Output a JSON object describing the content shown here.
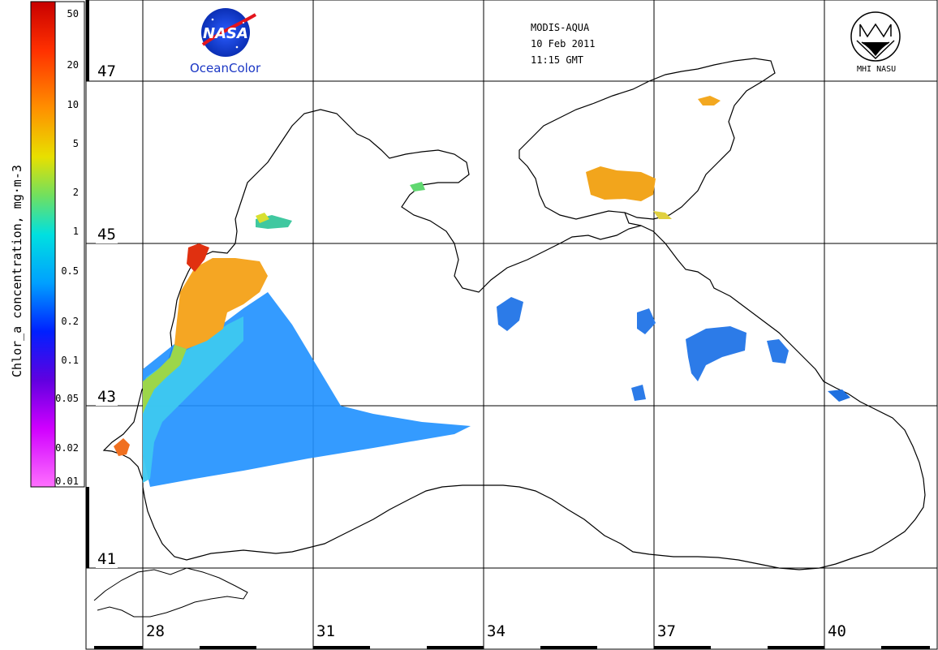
{
  "header": {
    "sensor": "MODIS-AQUA",
    "date": "10 Feb 2011",
    "time": "11:15 GMT"
  },
  "logos": {
    "nasa_text": "NASA",
    "ocean_color": "OceanColor",
    "mhi": "MHI NASU"
  },
  "colorbar": {
    "title": "Chlor_a concentration, mg·m-3",
    "ticks": [
      "50",
      "20",
      "10",
      "5",
      "2",
      "1",
      "0.5",
      "0.2",
      "0.1",
      "0.05",
      "0.02",
      "0.01"
    ],
    "colors": [
      "#c80000",
      "#ff6000",
      "#ffb000",
      "#e8e000",
      "#60e060",
      "#00e8e8",
      "#0080ff",
      "#0000ff",
      "#6000e0",
      "#c000ff",
      "#ff00ff",
      "#ff80ff"
    ]
  },
  "grid": {
    "lat_labels": [
      "47",
      "45",
      "43",
      "41"
    ],
    "lon_labels": [
      "28",
      "31",
      "34",
      "37",
      "40"
    ]
  },
  "legend_colors": {
    "coast": "#000000",
    "grid": "#000000",
    "background": "#ffffff"
  }
}
